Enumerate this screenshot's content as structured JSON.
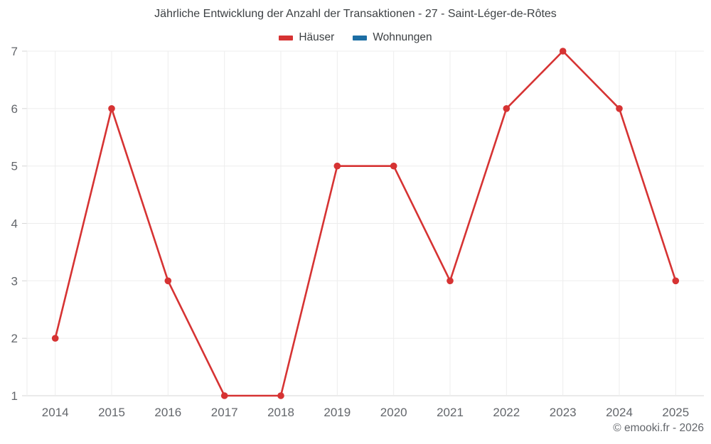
{
  "chart_data": {
    "type": "line",
    "title": "Jährliche Entwicklung der Anzahl der Transaktionen - 27 - Saint-Léger-de-Rôtes",
    "categories": [
      "2014",
      "2015",
      "2016",
      "2017",
      "2018",
      "2019",
      "2020",
      "2021",
      "2022",
      "2023",
      "2024",
      "2025"
    ],
    "series": [
      {
        "name": "Häuser",
        "color": "#d63333",
        "values": [
          2,
          6,
          3,
          1,
          1,
          5,
          5,
          3,
          6,
          7,
          6,
          3
        ]
      },
      {
        "name": "Wohnungen",
        "color": "#1c6ea4",
        "values": []
      }
    ],
    "xlabel": "",
    "ylabel": "",
    "ylim": [
      1,
      7
    ],
    "yticks": [
      1,
      2,
      3,
      4,
      5,
      6,
      7
    ],
    "grid": true,
    "legend_position": "top"
  },
  "footer": {
    "text": "© emooki.fr - 2026"
  },
  "colors": {
    "grid": "#ededed",
    "axis": "#d5d5d5",
    "tick_label": "#63666b",
    "title_text": "#3d4144"
  }
}
